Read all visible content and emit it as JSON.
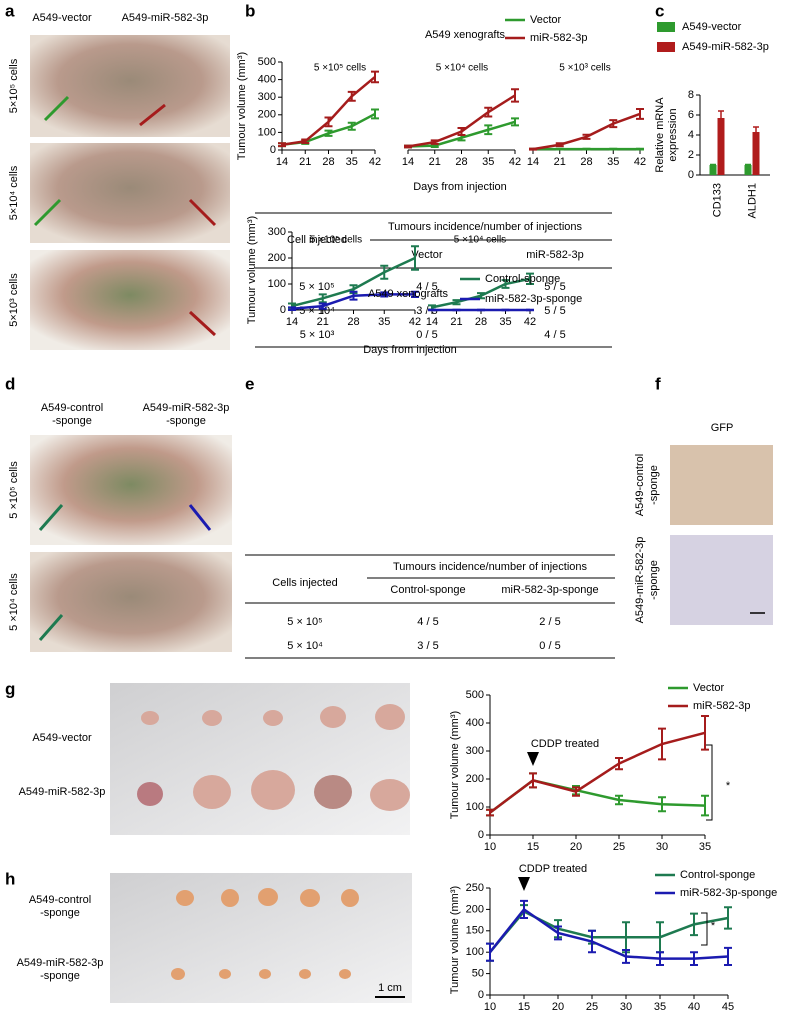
{
  "panel_letters": [
    "a",
    "b",
    "c",
    "d",
    "e",
    "f",
    "g",
    "h"
  ],
  "photos": {
    "a": {
      "columns": [
        "A549-vector",
        "A549-miR-582-3p"
      ],
      "rows": [
        "5×10⁵ cells",
        "5×10⁴ cells",
        "5×10³ cells"
      ]
    },
    "d": {
      "columns": [
        [
          "A549-control",
          "-sponge"
        ],
        [
          "A549-miR-582-3p",
          "-sponge"
        ]
      ],
      "rows": [
        "5 ×10⁵ cells",
        "5 ×10⁴ cells"
      ]
    },
    "f": {
      "title": "GFP",
      "rows": [
        [
          "A549-control",
          "-sponge"
        ],
        [
          "A549-miR-582-3p",
          "-sponge"
        ]
      ]
    },
    "g": {
      "rows": [
        "A549-vector",
        "A549-miR-582-3p"
      ]
    },
    "h": {
      "rows": [
        [
          "A549-control",
          "-sponge"
        ],
        [
          "A549-miR-582-3p",
          "-sponge"
        ]
      ],
      "scale_bar": "1 cm"
    }
  },
  "chart_data": [
    {
      "type": "line",
      "title": "A549 xenografts",
      "ylabel": "Tumour volume (mm³)",
      "xlabel": "Days from injection",
      "series": [
        {
          "name": "Vector",
          "color": "#2e9a2e"
        },
        {
          "name": "miR-582-3p",
          "color": "#a51c1c"
        }
      ],
      "x": [
        14,
        21,
        28,
        35,
        42
      ],
      "xlim": [
        14,
        42
      ],
      "xticks": [
        14,
        21,
        28,
        35,
        42
      ],
      "ylim": [
        0,
        500
      ],
      "yticks": [
        0,
        100,
        200,
        300,
        400,
        500
      ],
      "groups": [
        {
          "label": "5 ×10⁵ cells",
          "values": [
            [
              30,
              45,
              95,
              135,
              205
            ],
            [
              30,
              50,
              160,
              305,
              415
            ]
          ],
          "errors": [
            [
              8,
              10,
              15,
              20,
              25
            ],
            [
              8,
              10,
              25,
              25,
              30
            ]
          ]
        },
        {
          "label": "5 ×10⁴ cells",
          "values": [
            [
              20,
              25,
              70,
              115,
              160
            ],
            [
              20,
              45,
              105,
              215,
              310
            ]
          ],
          "errors": [
            [
              5,
              8,
              15,
              25,
              20
            ],
            [
              5,
              10,
              20,
              25,
              35
            ]
          ]
        },
        {
          "label": "5 ×10³ cells",
          "values": [
            [
              5,
              5,
              5,
              5,
              5
            ],
            [
              5,
              30,
              75,
              150,
              205
            ]
          ],
          "errors": [
            [
              2,
              2,
              2,
              2,
              2
            ],
            [
              3,
              8,
              12,
              20,
              28
            ]
          ]
        }
      ]
    },
    {
      "type": "bar",
      "ylabel": [
        "Relative mRNA",
        "expression"
      ],
      "categories": [
        "CD133",
        "ALDH1"
      ],
      "series": [
        {
          "name": "A549-vector",
          "color": "#2e9a2e",
          "values": [
            1,
            1
          ],
          "errors": [
            0.05,
            0.05
          ]
        },
        {
          "name": "A549-miR-582-3p",
          "color": "#b01c1c",
          "values": [
            5.7,
            4.3
          ],
          "errors": [
            0.7,
            0.5
          ]
        }
      ],
      "ylim": [
        0,
        8
      ],
      "yticks": [
        0,
        2,
        4,
        6,
        8
      ]
    },
    {
      "type": "line",
      "title": "A549 xenografts",
      "ylabel": "Tumour volume (mm³)",
      "xlabel": "Days from injection",
      "series": [
        {
          "name": "Control-sponge",
          "color": "#1e7a50"
        },
        {
          "name": "miR-582-3p-sponge",
          "color": "#1b1bb0"
        }
      ],
      "x": [
        14,
        21,
        28,
        35,
        42
      ],
      "xlim": [
        14,
        42
      ],
      "xticks": [
        14,
        21,
        28,
        35,
        42
      ],
      "ylim": [
        0,
        300
      ],
      "yticks": [
        0,
        100,
        200,
        300
      ],
      "groups": [
        {
          "label": "5 ×10⁵ cells",
          "values": [
            [
              15,
              45,
              80,
              145,
              200
            ],
            [
              5,
              15,
              55,
              60,
              60
            ]
          ],
          "errors": [
            [
              10,
              15,
              15,
              25,
              45
            ],
            [
              5,
              10,
              15,
              8,
              10
            ]
          ]
        },
        {
          "label": "5 ×10⁴ cells",
          "values": [
            [
              10,
              30,
              55,
              100,
              120
            ],
            [
              0,
              0,
              0,
              0,
              0
            ]
          ],
          "errors": [
            [
              8,
              8,
              10,
              15,
              20
            ],
            [
              1,
              1,
              1,
              1,
              1
            ]
          ]
        }
      ]
    },
    {
      "type": "line",
      "ylabel": "Tumour volume (mm³)",
      "annotations": [
        "CDDP treated",
        "*"
      ],
      "series": [
        {
          "name": "Vector",
          "color": "#2e9a2e"
        },
        {
          "name": "miR-582-3p",
          "color": "#a51c1c"
        }
      ],
      "x": [
        10,
        15,
        20,
        25,
        30,
        35
      ],
      "xlim": [
        10,
        35
      ],
      "xticks": [
        10,
        15,
        20,
        25,
        30,
        35
      ],
      "ylim": [
        0,
        500
      ],
      "yticks": [
        0,
        100,
        200,
        300,
        400,
        500
      ],
      "groups": [
        {
          "values": [
            [
              80,
              195,
              160,
              125,
              110,
              105
            ],
            [
              80,
              195,
              155,
              255,
              325,
              365
            ]
          ],
          "errors": [
            [
              10,
              25,
              15,
              15,
              25,
              35
            ],
            [
              10,
              25,
              15,
              20,
              55,
              60
            ]
          ]
        }
      ]
    },
    {
      "type": "line",
      "ylabel": "Tumour volume (mm³)",
      "annotations": [
        "CDDP treated",
        "*"
      ],
      "series": [
        {
          "name": "Control-sponge",
          "color": "#1e7a50"
        },
        {
          "name": "miR-582-3p-sponge",
          "color": "#1b1bb0"
        }
      ],
      "x": [
        10,
        15,
        20,
        25,
        30,
        35,
        40,
        45
      ],
      "xlim": [
        10,
        45
      ],
      "xticks": [
        10,
        15,
        20,
        25,
        30,
        35,
        40,
        45
      ],
      "ylim": [
        0,
        250
      ],
      "yticks": [
        0,
        50,
        100,
        150,
        200,
        250
      ],
      "groups": [
        {
          "values": [
            [
              100,
              195,
              155,
              135,
              135,
              135,
              165,
              180
            ],
            [
              100,
              200,
              145,
              125,
              90,
              85,
              85,
              90
            ]
          ],
          "errors": [
            [
              20,
              15,
              20,
              15,
              35,
              35,
              25,
              25
            ],
            [
              20,
              20,
              15,
              25,
              15,
              15,
              15,
              20
            ]
          ]
        }
      ]
    }
  ],
  "tables": [
    {
      "row_header": "Cell injected",
      "group_header": "Tumours incidence/number of injections",
      "columns": [
        "Vector",
        "miR-582-3p"
      ],
      "rows": [
        [
          "5 × 10⁵",
          "4 / 5",
          "5 / 5"
        ],
        [
          "5 × 10⁴",
          "3 / 5",
          "5 / 5"
        ],
        [
          "5 × 10³",
          "0 / 5",
          "4 / 5"
        ]
      ]
    },
    {
      "row_header": "Cells injected",
      "group_header": "Tumours incidence/number of injections",
      "columns": [
        "Control-sponge",
        "miR-582-3p-sponge"
      ],
      "rows": [
        [
          "5 × 10⁵",
          "4 / 5",
          "2 / 5"
        ],
        [
          "5 × 10⁴",
          "3 / 5",
          "0 / 5"
        ]
      ]
    }
  ]
}
